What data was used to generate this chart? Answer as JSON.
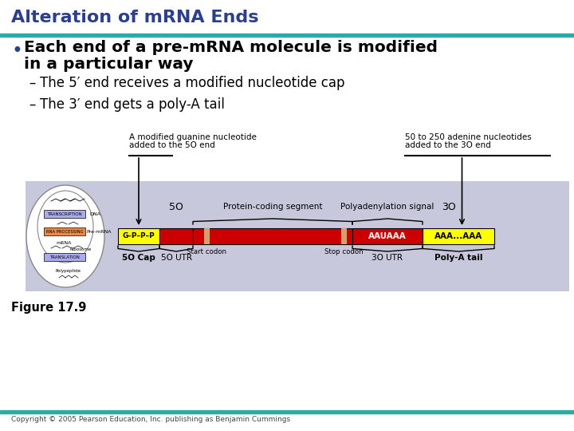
{
  "title": "Alteration of mRNA Ends",
  "title_color": "#2B3F8C",
  "title_line_color": "#2AADA8",
  "bg_color": "#FFFFFF",
  "bullet1_line1": "Each end of a pre-mRNA molecule is modified",
  "bullet1_line2": "in a particular way",
  "sub1": "The 5′ end receives a modified nucleotide cap",
  "sub2": "The 3′ end gets a poly-A tail",
  "fig_label": "Figure 17.9",
  "copyright": "Copyright © 2005 Pearson Education, Inc. publishing as Benjamin Cummings",
  "diagram_bg": "#C8C8DC",
  "arrow_label1_line1": "A modified guanine nucleotide",
  "arrow_label1_line2": "added to the 5O end",
  "arrow_label2_line1": "50 to 250 adenine nucleotides",
  "arrow_label2_line2": "added to the 3O end",
  "seg_5o_label": "5O",
  "seg_protein_label": "Protein-coding segment",
  "seg_polyadenyl_label": "Polyadenylation signal",
  "seg_3o_label": "3O",
  "bar_g_label": "G–P–P–P",
  "bar_g_color": "#FFFF00",
  "bar_red_color": "#CC0000",
  "bar_polyadenyl_label": "AAUAAA",
  "bar_polya_label": "AAA...AAA",
  "bar_polya_color": "#FFFF00",
  "brace_5cap": "5O Cap",
  "brace_5utr": "5O UTR",
  "brace_start": "Start codon",
  "brace_stop": "Stop codon",
  "brace_3utr": "3O UTR",
  "brace_polya_tail": "Poly-A tail",
  "cell_transcription": "TRANSCRIPTION",
  "cell_dna": "DNA",
  "cell_rnaproc": "RNA PROCESSING",
  "cell_premrna": "Pre-mRNA",
  "cell_mrna": "mRNA",
  "cell_translation": "TRANSLATION",
  "cell_ribosome": "Ribosome",
  "cell_polypeptide": "Polypeptide"
}
